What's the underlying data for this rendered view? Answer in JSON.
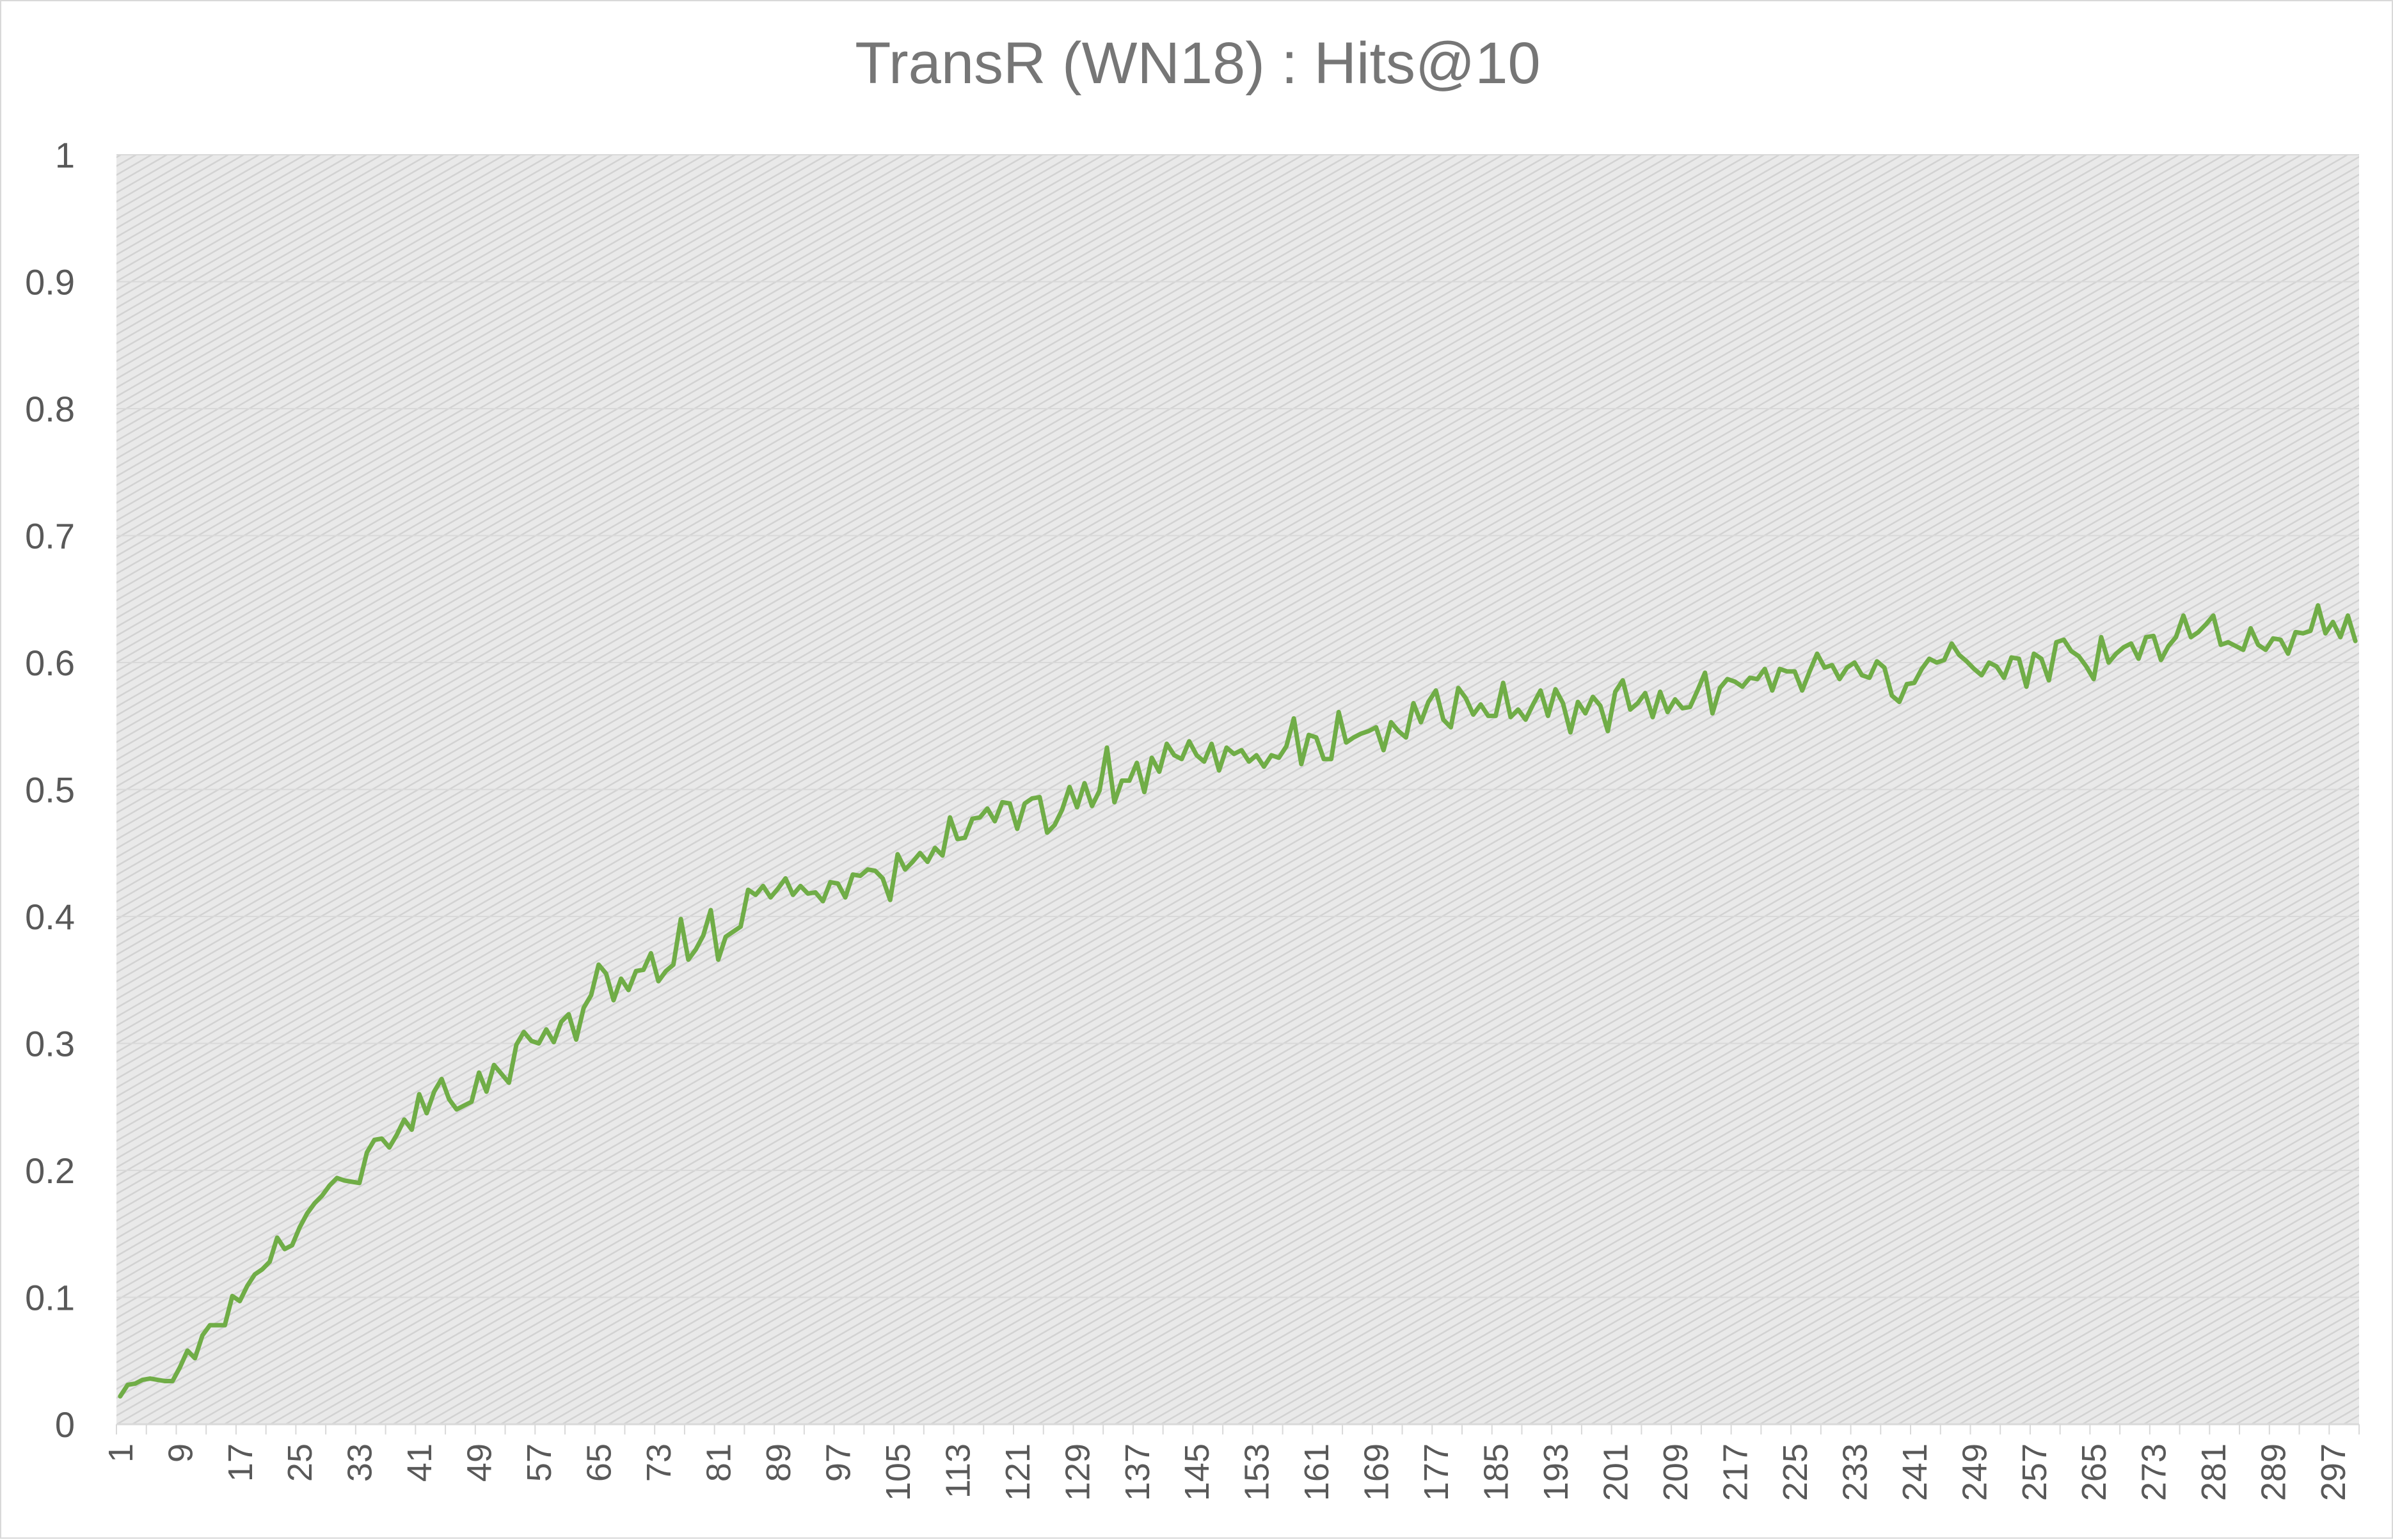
{
  "chart_data": {
    "type": "line",
    "title": "TransR (WN18) : Hits@10",
    "xlabel": "",
    "ylabel": "",
    "ylim": [
      0,
      1
    ],
    "y_ticks": [
      "0",
      "0.1",
      "0.2",
      "0.3",
      "0.4",
      "0.5",
      "0.6",
      "0.7",
      "0.8",
      "0.9",
      "1"
    ],
    "x_range": [
      1,
      300
    ],
    "x_tick_step": 4,
    "x_tick_labels_every": 8,
    "grid": true,
    "legend": "none",
    "plot_background": "hatched light gray",
    "series": [
      {
        "color": "#70ad47",
        "x_start": 1,
        "values": [
          0.022,
          0.031,
          0.032,
          0.035,
          0.036,
          0.035,
          0.034,
          0.034,
          0.045,
          0.058,
          0.052,
          0.07,
          0.078,
          0.078,
          0.078,
          0.101,
          0.097,
          0.109,
          0.118,
          0.122,
          0.128,
          0.147,
          0.138,
          0.141,
          0.155,
          0.166,
          0.174,
          0.18,
          0.188,
          0.194,
          0.192,
          0.191,
          0.19,
          0.214,
          0.224,
          0.225,
          0.218,
          0.228,
          0.24,
          0.232,
          0.26,
          0.245,
          0.262,
          0.272,
          0.256,
          0.248,
          0.251,
          0.254,
          0.277,
          0.262,
          0.283,
          0.276,
          0.269,
          0.299,
          0.309,
          0.302,
          0.3,
          0.311,
          0.301,
          0.317,
          0.323,
          0.303,
          0.328,
          0.338,
          0.362,
          0.355,
          0.334,
          0.351,
          0.342,
          0.357,
          0.358,
          0.371,
          0.349,
          0.357,
          0.362,
          0.398,
          0.366,
          0.374,
          0.385,
          0.405,
          0.366,
          0.384,
          0.388,
          0.392,
          0.421,
          0.417,
          0.424,
          0.415,
          0.422,
          0.43,
          0.417,
          0.424,
          0.418,
          0.419,
          0.412,
          0.427,
          0.426,
          0.415,
          0.433,
          0.432,
          0.437,
          0.436,
          0.43,
          0.413,
          0.449,
          0.437,
          0.443,
          0.45,
          0.443,
          0.454,
          0.448,
          0.478,
          0.461,
          0.462,
          0.477,
          0.478,
          0.485,
          0.475,
          0.49,
          0.489,
          0.469,
          0.489,
          0.493,
          0.494,
          0.466,
          0.472,
          0.484,
          0.502,
          0.486,
          0.505,
          0.487,
          0.499,
          0.533,
          0.49,
          0.507,
          0.507,
          0.521,
          0.498,
          0.525,
          0.514,
          0.536,
          0.527,
          0.524,
          0.538,
          0.527,
          0.522,
          0.536,
          0.515,
          0.533,
          0.528,
          0.531,
          0.522,
          0.527,
          0.518,
          0.527,
          0.525,
          0.534,
          0.556,
          0.52,
          0.543,
          0.541,
          0.524,
          0.524,
          0.561,
          0.537,
          0.541,
          0.544,
          0.546,
          0.549,
          0.531,
          0.553,
          0.546,
          0.541,
          0.568,
          0.553,
          0.569,
          0.578,
          0.555,
          0.549,
          0.58,
          0.572,
          0.559,
          0.567,
          0.558,
          0.558,
          0.584,
          0.557,
          0.563,
          0.555,
          0.567,
          0.578,
          0.558,
          0.579,
          0.568,
          0.545,
          0.569,
          0.56,
          0.573,
          0.566,
          0.546,
          0.577,
          0.586,
          0.563,
          0.568,
          0.576,
          0.557,
          0.577,
          0.561,
          0.571,
          0.564,
          0.565,
          0.578,
          0.592,
          0.56,
          0.58,
          0.587,
          0.585,
          0.581,
          0.588,
          0.587,
          0.595,
          0.578,
          0.595,
          0.593,
          0.593,
          0.578,
          0.593,
          0.607,
          0.596,
          0.598,
          0.587,
          0.596,
          0.6,
          0.59,
          0.588,
          0.601,
          0.596,
          0.574,
          0.569,
          0.583,
          0.584,
          0.595,
          0.603,
          0.6,
          0.602,
          0.615,
          0.606,
          0.601,
          0.595,
          0.59,
          0.6,
          0.597,
          0.588,
          0.604,
          0.603,
          0.581,
          0.607,
          0.603,
          0.586,
          0.616,
          0.618,
          0.609,
          0.605,
          0.597,
          0.587,
          0.62,
          0.6,
          0.607,
          0.612,
          0.615,
          0.603,
          0.62,
          0.621,
          0.602,
          0.613,
          0.62,
          0.637,
          0.62,
          0.624,
          0.63,
          0.637,
          0.614,
          0.616,
          0.613,
          0.61,
          0.627,
          0.614,
          0.61,
          0.619,
          0.618,
          0.607,
          0.624,
          0.623,
          0.625,
          0.645,
          0.623,
          0.632,
          0.62,
          0.637,
          0.617
        ]
      }
    ]
  }
}
